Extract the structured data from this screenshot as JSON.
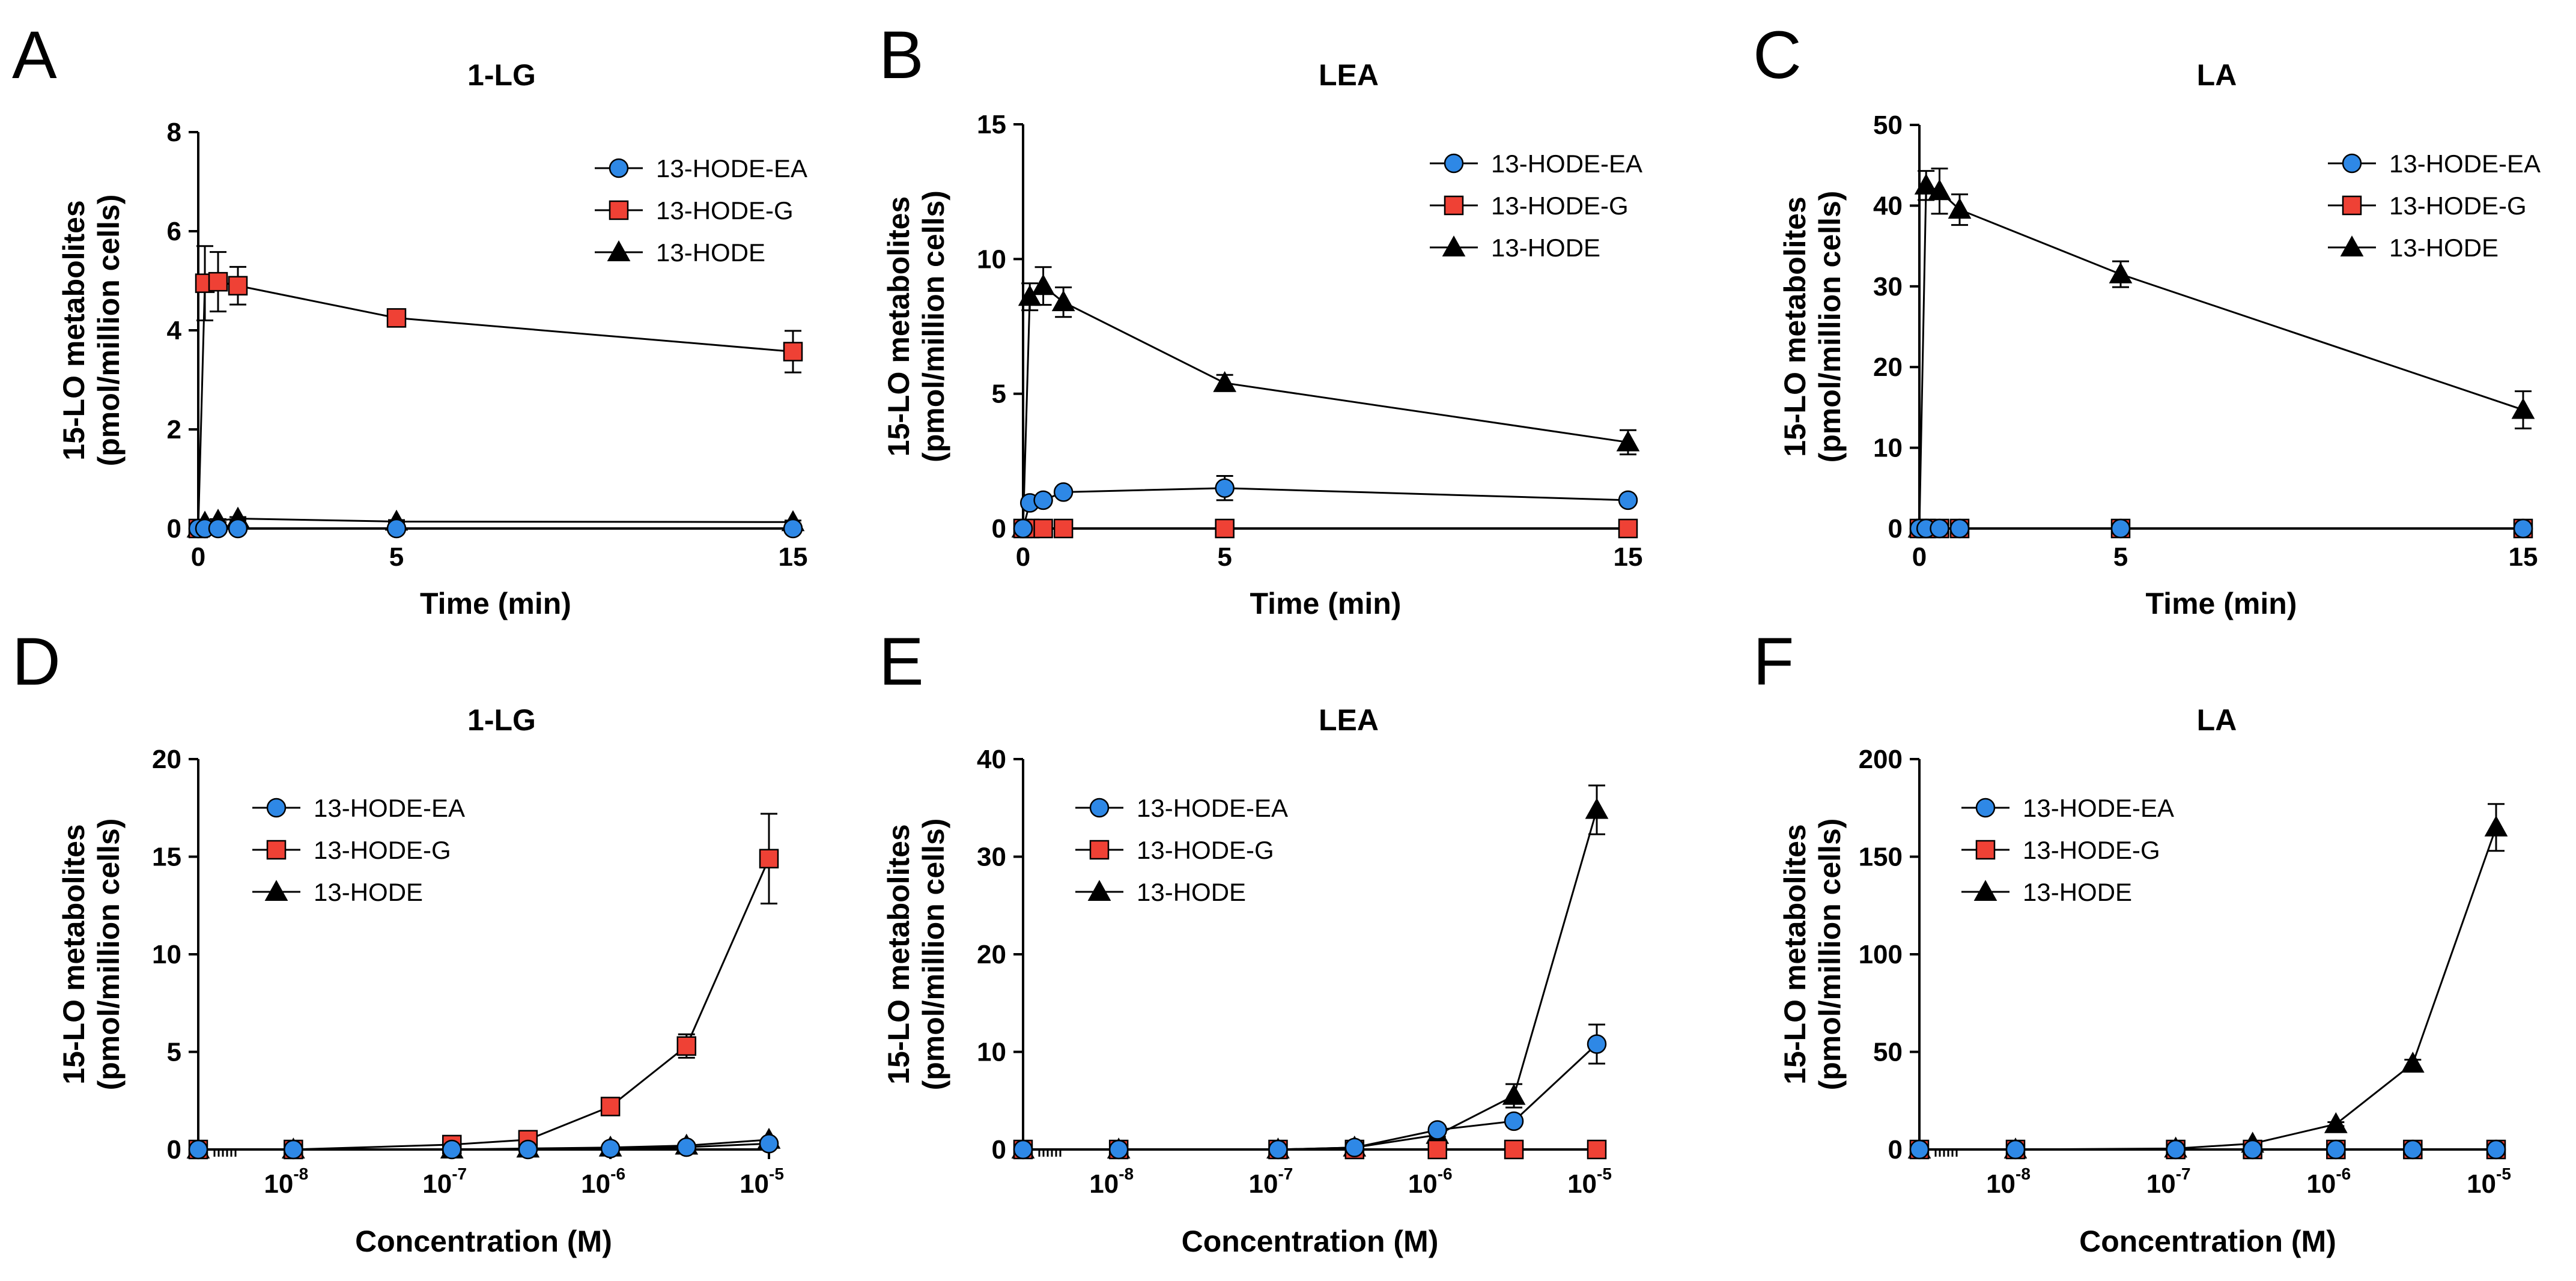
{
  "figure": {
    "colors": {
      "ea": "#2e88e6",
      "g": "#ef4135",
      "hode": "#000000",
      "marker_edge": "#000000",
      "line": "#000000",
      "axis": "#000000"
    }
  },
  "chart_data": [
    {
      "panel": "A",
      "type": "line",
      "title": "1-LG",
      "xlabel": "Time (min)",
      "ylabel": [
        "15-LO metabolites",
        "(pmol/million cells)"
      ],
      "xscale": "linear",
      "xlim": [
        0,
        15
      ],
      "ylim": [
        0,
        8
      ],
      "xticks": [
        0,
        5,
        15
      ],
      "yticks": [
        0,
        2,
        4,
        6,
        8
      ],
      "x": [
        0,
        0.167,
        0.5,
        1,
        5,
        15
      ],
      "legend": "upper-right",
      "series": [
        {
          "name": "13-HODE-EA",
          "marker": "circle",
          "color": "ea",
          "values": [
            0,
            0,
            0,
            0,
            0,
            0
          ],
          "errors": [
            0,
            0,
            0,
            0,
            0,
            0
          ]
        },
        {
          "name": "13-HODE-G",
          "marker": "square",
          "color": "g",
          "values": [
            0,
            4.95,
            4.98,
            4.9,
            4.25,
            3.57
          ],
          "errors": [
            0,
            0.75,
            0.6,
            0.38,
            0.15,
            0.42
          ]
        },
        {
          "name": "13-HODE",
          "marker": "triangle",
          "color": "hode",
          "values": [
            0,
            0.12,
            0.16,
            0.2,
            0.14,
            0.13
          ],
          "errors": [
            0,
            0.03,
            0.03,
            0.03,
            0.03,
            0.03
          ]
        }
      ]
    },
    {
      "panel": "B",
      "type": "line",
      "title": "LEA",
      "xlabel": "Time (min)",
      "ylabel": [
        "15-LO metabolites",
        "(pmol/million cells)"
      ],
      "xscale": "linear",
      "xlim": [
        0,
        15
      ],
      "ylim": [
        0,
        15
      ],
      "xticks": [
        0,
        5,
        15
      ],
      "yticks": [
        0,
        5,
        10,
        15
      ],
      "x": [
        0,
        0.167,
        0.5,
        1,
        5,
        15
      ],
      "legend": "upper-right",
      "series": [
        {
          "name": "13-HODE-EA",
          "marker": "circle",
          "color": "ea",
          "values": [
            0,
            0.95,
            1.05,
            1.35,
            1.5,
            1.05
          ],
          "errors": [
            0,
            0.1,
            0.1,
            0.15,
            0.45,
            0.15
          ]
        },
        {
          "name": "13-HODE-G",
          "marker": "square",
          "color": "g",
          "values": [
            0,
            0,
            0,
            0,
            0,
            0
          ],
          "errors": [
            0,
            0,
            0,
            0,
            0,
            0
          ]
        },
        {
          "name": "13-HODE",
          "marker": "triangle",
          "color": "hode",
          "values": [
            0,
            8.6,
            9.0,
            8.4,
            5.4,
            3.2
          ],
          "errors": [
            0,
            0.5,
            0.7,
            0.55,
            0.3,
            0.45
          ]
        }
      ]
    },
    {
      "panel": "C",
      "type": "line",
      "title": "LA",
      "xlabel": "Time (min)",
      "ylabel": [
        "15-LO metabolites",
        "(pmol/million cells)"
      ],
      "xscale": "linear",
      "xlim": [
        0,
        15
      ],
      "ylim": [
        0,
        50
      ],
      "xticks": [
        0,
        5,
        15
      ],
      "yticks": [
        0,
        10,
        20,
        30,
        40,
        50
      ],
      "x": [
        0,
        0.167,
        0.5,
        1,
        5,
        15
      ],
      "legend": "upper-right",
      "series": [
        {
          "name": "13-HODE-EA",
          "marker": "circle",
          "color": "ea",
          "values": [
            0,
            0,
            0,
            0,
            0,
            0
          ],
          "errors": [
            0,
            0,
            0,
            0,
            0,
            0
          ]
        },
        {
          "name": "13-HODE-G",
          "marker": "square",
          "color": "g",
          "values": [
            0,
            0,
            0,
            0,
            0,
            0
          ],
          "errors": [
            0,
            0,
            0,
            0,
            0,
            0
          ]
        },
        {
          "name": "13-HODE",
          "marker": "triangle",
          "color": "hode",
          "values": [
            0,
            42.5,
            41.8,
            39.5,
            31.5,
            14.7
          ],
          "errors": [
            0,
            1.8,
            2.8,
            1.9,
            1.6,
            2.3
          ]
        }
      ]
    },
    {
      "panel": "D",
      "type": "line",
      "title": "1-LG",
      "xlabel": "Concentration (M)",
      "ylabel": [
        "15-LO metabolites",
        "(pmol/million cells)"
      ],
      "xscale": "log",
      "xlim": [
        -8.6,
        -5
      ],
      "ylim": [
        0,
        20
      ],
      "xticks": [
        -8,
        -7,
        -6,
        -5
      ],
      "xtick_labels": [
        {
          "base": "10",
          "exp": "-8"
        },
        {
          "base": "10",
          "exp": "-7"
        },
        {
          "base": "10",
          "exp": "-6"
        },
        {
          "base": "10",
          "exp": "-5"
        }
      ],
      "yticks": [
        0,
        5,
        10,
        15,
        20
      ],
      "x": [
        -8.6,
        -8.0,
        -7.0,
        -6.52,
        -6.0,
        -5.52,
        -5.0
      ],
      "legend": "upper-left",
      "series": [
        {
          "name": "13-HODE-EA",
          "marker": "circle",
          "color": "ea",
          "values": [
            0,
            0,
            0,
            0,
            0.05,
            0.12,
            0.3
          ],
          "errors": [
            0,
            0,
            0,
            0,
            0,
            0,
            0
          ]
        },
        {
          "name": "13-HODE-G",
          "marker": "square",
          "color": "g",
          "values": [
            0,
            0,
            0.25,
            0.5,
            2.2,
            5.3,
            14.9
          ],
          "errors": [
            0,
            0,
            0.05,
            0.1,
            0.2,
            0.6,
            2.3
          ]
        },
        {
          "name": "13-HODE",
          "marker": "triangle",
          "color": "hode",
          "values": [
            0,
            0,
            0,
            0.05,
            0.1,
            0.2,
            0.5
          ],
          "errors": [
            0,
            0,
            0,
            0,
            0,
            0,
            0
          ]
        }
      ]
    },
    {
      "panel": "E",
      "type": "line",
      "title": "LEA",
      "xlabel": "Concentration (M)",
      "ylabel": [
        "15-LO metabolites",
        "(pmol/million cells)"
      ],
      "xscale": "log",
      "xlim": [
        -8.6,
        -5
      ],
      "ylim": [
        0,
        40
      ],
      "xticks": [
        -8,
        -7,
        -6,
        -5
      ],
      "xtick_labels": [
        {
          "base": "10",
          "exp": "-8"
        },
        {
          "base": "10",
          "exp": "-7"
        },
        {
          "base": "10",
          "exp": "-6"
        },
        {
          "base": "10",
          "exp": "-5"
        }
      ],
      "yticks": [
        0,
        10,
        20,
        30,
        40
      ],
      "x": [
        -8.6,
        -8.0,
        -7.0,
        -6.52,
        -6.0,
        -5.52,
        -5.0
      ],
      "legend": "upper-left",
      "series": [
        {
          "name": "13-HODE-EA",
          "marker": "circle",
          "color": "ea",
          "values": [
            0,
            0,
            0,
            0.2,
            2.0,
            2.9,
            10.8
          ],
          "errors": [
            0,
            0,
            0,
            0,
            0.2,
            0.3,
            2.0
          ]
        },
        {
          "name": "13-HODE-G",
          "marker": "square",
          "color": "g",
          "values": [
            0,
            0,
            0,
            0,
            0,
            0,
            0
          ],
          "errors": [
            0,
            0,
            0,
            0,
            0,
            0,
            0
          ]
        },
        {
          "name": "13-HODE",
          "marker": "triangle",
          "color": "hode",
          "values": [
            0,
            0,
            0,
            0.2,
            1.5,
            5.5,
            34.8
          ],
          "errors": [
            0,
            0,
            0,
            0,
            0.2,
            1.2,
            2.5
          ]
        }
      ]
    },
    {
      "panel": "F",
      "type": "line",
      "title": "LA",
      "xlabel": "Concentration (M)",
      "ylabel": [
        "15-LO metabolites",
        "(pmol/million cells)"
      ],
      "xscale": "log",
      "xlim": [
        -8.6,
        -5
      ],
      "ylim": [
        0,
        200
      ],
      "xticks": [
        -8,
        -7,
        -6,
        -5
      ],
      "xtick_labels": [
        {
          "base": "10",
          "exp": "-8"
        },
        {
          "base": "10",
          "exp": "-7"
        },
        {
          "base": "10",
          "exp": "-6"
        },
        {
          "base": "10",
          "exp": "-5"
        }
      ],
      "yticks": [
        0,
        50,
        100,
        150,
        200
      ],
      "x": [
        -8.6,
        -8.0,
        -7.0,
        -6.52,
        -6.0,
        -5.52,
        -5.0
      ],
      "legend": "upper-left",
      "series": [
        {
          "name": "13-HODE-EA",
          "marker": "circle",
          "color": "ea",
          "values": [
            0,
            0,
            0,
            0,
            0,
            0,
            0
          ],
          "errors": [
            0,
            0,
            0,
            0,
            0,
            0,
            0
          ]
        },
        {
          "name": "13-HODE-G",
          "marker": "square",
          "color": "g",
          "values": [
            0,
            0,
            0,
            0,
            0,
            0,
            0
          ],
          "errors": [
            0,
            0,
            0,
            0,
            0,
            0,
            0
          ]
        },
        {
          "name": "13-HODE",
          "marker": "triangle",
          "color": "hode",
          "values": [
            0,
            0,
            0.5,
            3,
            13,
            44,
            165
          ],
          "errors": [
            0,
            0,
            0,
            0.5,
            1,
            2,
            12
          ]
        }
      ]
    }
  ]
}
